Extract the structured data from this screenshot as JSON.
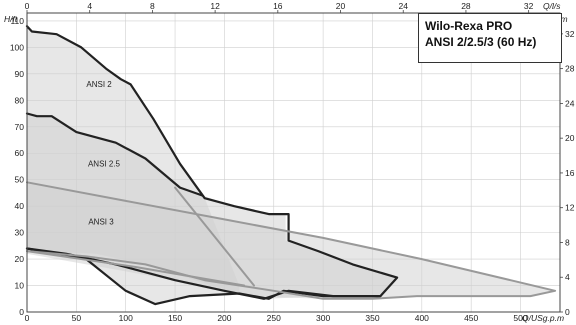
{
  "title_box": {
    "line1": "Wilo-Rexa PRO",
    "line2": "ANSI 2/2.5/3 (60 Hz)"
  },
  "colors": {
    "background": "#ffffff",
    "grid": "#cfcfcf",
    "region_fill": "#d0d0d0",
    "curve_dark": "#222222",
    "curve_gray": "#999999"
  },
  "chart_data": {
    "type": "line",
    "grid": true,
    "axes": {
      "x_bottom": {
        "unit": "Q/USg.p.m",
        "ticks": [
          "0",
          "50",
          "100",
          "150",
          "200",
          "250",
          "300",
          "350",
          "400",
          "450",
          "500"
        ],
        "range": [
          0,
          540
        ]
      },
      "x_top": {
        "unit": "Q/l/s",
        "ticks": [
          "0",
          "4",
          "8",
          "12",
          "16",
          "20",
          "24",
          "28",
          "32"
        ],
        "range": [
          0,
          34
        ]
      },
      "y_left": {
        "unit": "H/ft",
        "ticks": [
          "0",
          "10",
          "20",
          "30",
          "40",
          "50",
          "60",
          "70",
          "80",
          "90",
          "100",
          "110"
        ],
        "range": [
          0,
          113
        ]
      },
      "y_right": {
        "unit": "H/m",
        "ticks": [
          "0",
          "4",
          "8",
          "12",
          "16",
          "20",
          "24",
          "28",
          "32"
        ],
        "range": [
          0,
          34.4
        ]
      }
    },
    "region_labels": [
      {
        "text": "ANSI 2",
        "x": 73,
        "y": 85
      },
      {
        "text": "ANSI 2.5",
        "x": 78,
        "y": 55
      },
      {
        "text": "ANSI 3",
        "x": 75,
        "y": 33
      }
    ],
    "regions": [
      {
        "name": "ANSI 2",
        "points": [
          [
            0,
            108
          ],
          [
            5,
            106
          ],
          [
            30,
            105
          ],
          [
            55,
            100
          ],
          [
            80,
            92
          ],
          [
            95,
            88
          ],
          [
            105,
            86
          ],
          [
            128,
            73
          ],
          [
            155,
            56
          ],
          [
            180,
            43
          ],
          [
            215,
            10
          ],
          [
            215,
            7
          ],
          [
            165,
            6
          ],
          [
            130,
            3
          ],
          [
            100,
            8
          ],
          [
            60,
            20
          ],
          [
            0,
            24
          ]
        ]
      },
      {
        "name": "ANSI 2.5",
        "points": [
          [
            0,
            75
          ],
          [
            25,
            74
          ],
          [
            50,
            68
          ],
          [
            90,
            64
          ],
          [
            120,
            58
          ],
          [
            155,
            47
          ],
          [
            178,
            44
          ],
          [
            210,
            40
          ],
          [
            245,
            37
          ],
          [
            262,
            37
          ],
          [
            262,
            27
          ],
          [
            295,
            23
          ],
          [
            330,
            18
          ],
          [
            375,
            13
          ],
          [
            358,
            6
          ],
          [
            300,
            6
          ],
          [
            245,
            5
          ],
          [
            215,
            7
          ],
          [
            170,
            12
          ],
          [
            120,
            18
          ],
          [
            70,
            22
          ],
          [
            0,
            23
          ]
        ]
      },
      {
        "name": "ANSI 3",
        "points": [
          [
            0,
            49
          ],
          [
            100,
            42
          ],
          [
            200,
            35
          ],
          [
            300,
            28
          ],
          [
            400,
            20
          ],
          [
            490,
            12
          ],
          [
            535,
            8
          ],
          [
            510,
            6
          ],
          [
            395,
            6
          ],
          [
            350,
            5
          ],
          [
            300,
            5
          ],
          [
            220,
            6
          ],
          [
            150,
            12
          ],
          [
            0,
            22
          ]
        ]
      }
    ],
    "series": [
      {
        "values": [
          [
            0,
            108
          ],
          [
            5,
            106
          ],
          [
            30,
            105
          ],
          [
            55,
            100
          ],
          [
            80,
            92
          ],
          [
            95,
            88
          ],
          [
            105,
            86
          ],
          [
            128,
            73
          ],
          [
            155,
            56
          ],
          [
            180,
            43
          ],
          [
            210,
            40
          ],
          [
            245,
            37
          ],
          [
            265,
            37
          ],
          [
            265,
            27
          ],
          [
            295,
            23
          ],
          [
            330,
            18
          ],
          [
            375,
            13
          ],
          [
            358,
            6
          ],
          [
            300,
            6
          ],
          [
            260,
            8
          ],
          [
            245,
            5
          ],
          [
            215,
            7
          ],
          [
            165,
            6
          ],
          [
            130,
            3
          ],
          [
            100,
            8
          ],
          [
            60,
            20
          ],
          [
            0,
            24
          ]
        ]
      },
      {
        "values": [
          [
            0,
            75
          ],
          [
            10,
            74
          ],
          [
            25,
            74
          ],
          [
            50,
            68
          ],
          [
            90,
            64
          ],
          [
            120,
            58
          ],
          [
            155,
            47
          ],
          [
            178,
            44
          ]
        ]
      },
      {
        "values": [
          [
            0,
            24
          ],
          [
            40,
            22
          ],
          [
            90,
            18
          ],
          [
            150,
            12
          ],
          [
            200,
            8
          ],
          [
            240,
            5
          ],
          [
            265,
            8
          ],
          [
            310,
            6
          ],
          [
            358,
            6
          ]
        ]
      },
      {
        "values": [
          [
            0,
            49
          ],
          [
            100,
            42
          ],
          [
            200,
            35
          ],
          [
            300,
            28
          ],
          [
            400,
            20
          ],
          [
            490,
            12
          ],
          [
            535,
            8
          ],
          [
            510,
            6
          ],
          [
            395,
            6
          ],
          [
            350,
            5
          ],
          [
            300,
            5
          ],
          [
            250,
            8
          ],
          [
            180,
            12
          ],
          [
            120,
            18
          ],
          [
            60,
            21
          ],
          [
            0,
            23
          ]
        ]
      },
      {
        "values": [
          [
            0,
            23
          ],
          [
            110,
            17
          ],
          [
            220,
            10
          ]
        ]
      },
      {
        "values": [
          [
            150,
            47
          ],
          [
            230,
            10
          ]
        ]
      }
    ]
  }
}
